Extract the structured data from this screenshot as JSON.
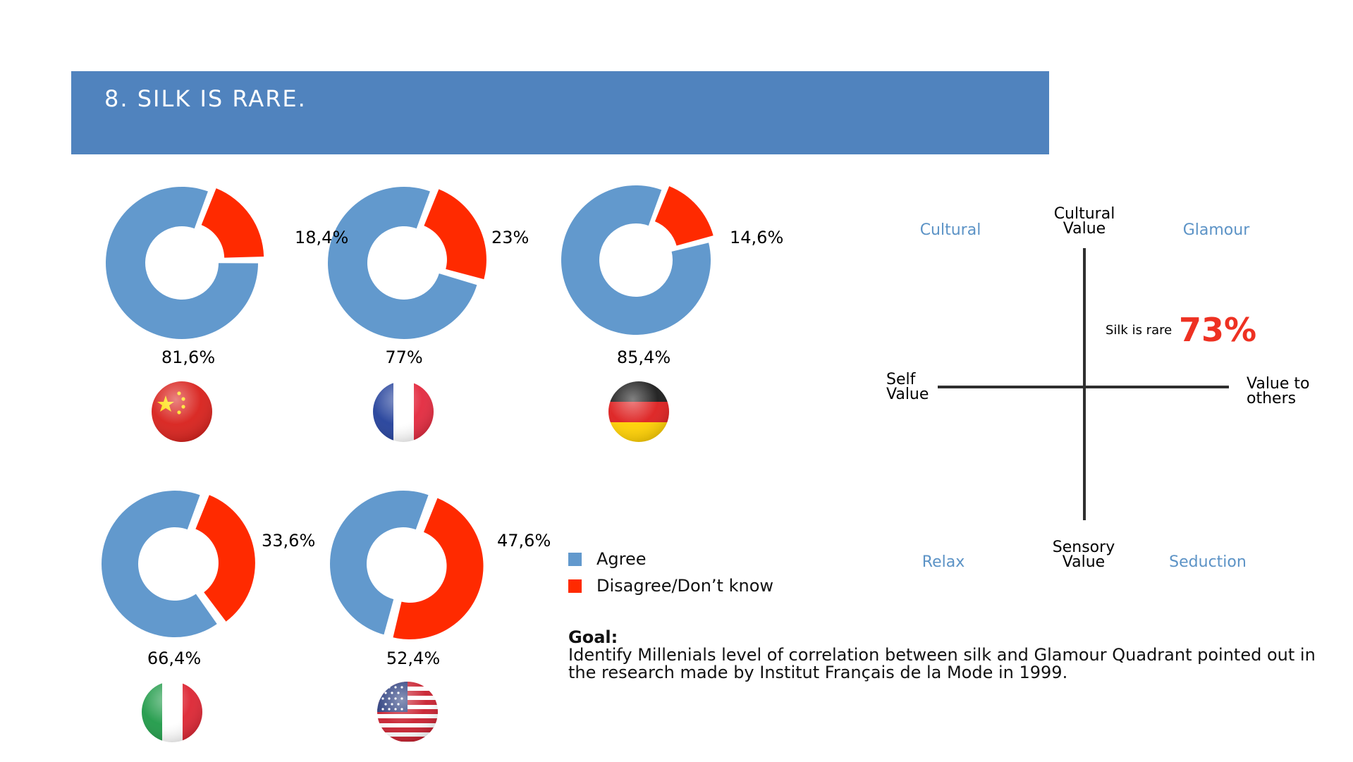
{
  "header": {
    "title": "8. SILK IS RARE."
  },
  "colors": {
    "agree": "#6299cd",
    "disagree": "#ff2a00",
    "banner": "#5083be",
    "quadrant_label": "#5c93c6",
    "highlight": "#ee3122"
  },
  "chart_data": [
    {
      "type": "pie",
      "subtype": "donut",
      "legend": [
        "Agree",
        "Disagree/Don't know"
      ],
      "charts": [
        {
          "flag": "china-flag",
          "agree": 81.6,
          "disagree": 18.4,
          "agree_label": "81,6%",
          "disagree_label": "18,4%"
        },
        {
          "flag": "france-flag",
          "agree": 77,
          "disagree": 23,
          "agree_label": "77%",
          "disagree_label": "23%"
        },
        {
          "flag": "germany-flag",
          "agree": 85.4,
          "disagree": 14.6,
          "agree_label": "85,4%",
          "disagree_label": "14,6%"
        },
        {
          "flag": "italy-flag",
          "agree": 66.4,
          "disagree": 33.6,
          "agree_label": "66,4%",
          "disagree_label": "33,6%"
        },
        {
          "flag": "usa-flag",
          "agree": 52.4,
          "disagree": 47.6,
          "agree_label": "52,4%",
          "disagree_label": "47,6%"
        }
      ]
    },
    {
      "type": "scatter",
      "subtype": "quadrant",
      "axes": {
        "top": [
          "Cultural",
          "Value"
        ],
        "bottom": [
          "Sensory",
          "Value"
        ],
        "left": [
          "Self",
          "Value"
        ],
        "right": [
          "Value to",
          "others"
        ]
      },
      "quadrants": {
        "top_left": "Cultural",
        "top_right": "Glamour",
        "bottom_left": "Relax",
        "bottom_right": "Seduction"
      },
      "annotation": {
        "label": "Silk is rare",
        "value": "73%"
      }
    }
  ],
  "legend": {
    "agree": "Agree",
    "disagree": "Disagree/Don’t know"
  },
  "goal": {
    "title": "Goal:",
    "line1": "Identify Millenials level of correlation between silk and Glamour Quadrant pointed out in",
    "line2": "the research made by Institut Français de la Mode in 1999."
  }
}
